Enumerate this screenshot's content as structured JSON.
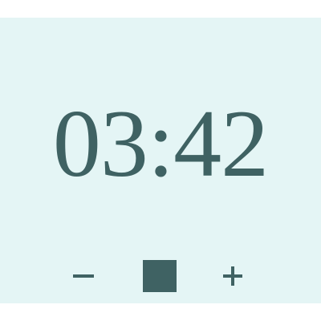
{
  "timer": {
    "display": "03:42"
  },
  "controls": [
    {
      "name": "decrement",
      "icon": "minus-icon"
    },
    {
      "name": "stop",
      "icon": "stop-icon"
    },
    {
      "name": "increment",
      "icon": "plus-icon"
    }
  ],
  "colors": {
    "background": "#e4f5f5",
    "foreground": "#3f6263"
  }
}
